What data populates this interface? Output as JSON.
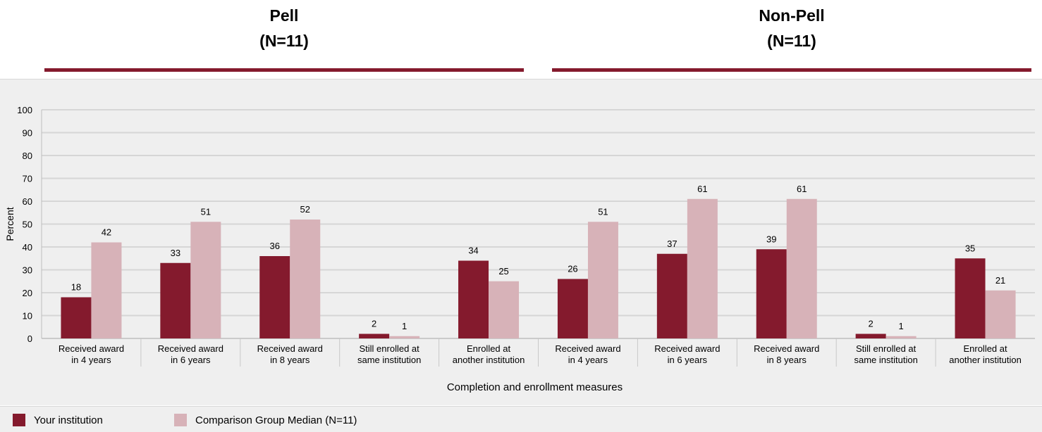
{
  "groups": [
    {
      "title": "Pell",
      "subtitle": "(N=11)"
    },
    {
      "title": "Non-Pell",
      "subtitle": "(N=11)"
    }
  ],
  "colors": {
    "institution": "#841a2d",
    "comparison": "#d7b2b8",
    "grid": "#d6d6d6",
    "background": "#efefef"
  },
  "legend": {
    "institution": "Your institution",
    "comparison": "Comparison Group Median (N=11)"
  },
  "chart_data": {
    "type": "bar",
    "title": "",
    "xlabel": "Completion and enrollment measures",
    "ylabel": "Percent",
    "ylim": [
      0,
      100
    ],
    "yticks": [
      0,
      10,
      20,
      30,
      40,
      50,
      60,
      70,
      80,
      90,
      100
    ],
    "grid": true,
    "legend_position": "bottom",
    "categories": [
      [
        "Received award",
        "in 4 years"
      ],
      [
        "Received award",
        "in 6 years"
      ],
      [
        "Received award",
        "in 8 years"
      ],
      [
        "Still enrolled at",
        "same institution"
      ],
      [
        "Enrolled at",
        "another institution"
      ],
      [
        "Received award",
        "in 4 years"
      ],
      [
        "Received award",
        "in 6 years"
      ],
      [
        "Received award",
        "in 8 years"
      ],
      [
        "Still enrolled at",
        "same institution"
      ],
      [
        "Enrolled at",
        "another institution"
      ]
    ],
    "series": [
      {
        "name": "Your institution",
        "values": [
          18,
          33,
          36,
          2,
          34,
          26,
          37,
          39,
          2,
          35
        ]
      },
      {
        "name": "Comparison Group Median (N=11)",
        "values": [
          42,
          51,
          52,
          1,
          25,
          51,
          61,
          61,
          1,
          21
        ]
      }
    ]
  }
}
